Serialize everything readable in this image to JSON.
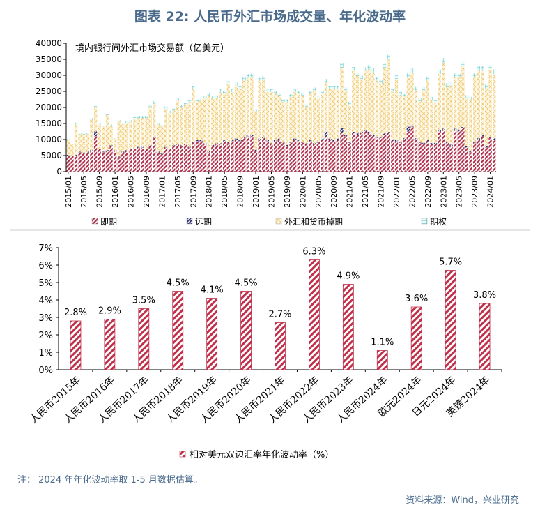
{
  "title": "图表 22: 人民币外汇市场成交量、年化波动率",
  "note": "注： 2024 年年化波动率取 1-5 月数据估算。",
  "source": "资料来源：Wind，兴业研究",
  "colors": {
    "title": "#4a6a8c",
    "spot": "#b0304a",
    "forward": "#2a2a6a",
    "swap": "#e8b84a",
    "option": "#5cc8c8",
    "bar2": "#c0304a"
  },
  "chart_data": [
    {
      "type": "bar",
      "stacked": true,
      "title": "",
      "annotation": "境内银行间外汇市场交易额（亿美元）",
      "ylim": [
        0,
        40000
      ],
      "yticks": [
        "0",
        "5000",
        "10000",
        "15000",
        "20000",
        "25000",
        "30000",
        "35000",
        "40000"
      ],
      "xtick_labels": [
        "2015/01",
        "2015/05",
        "2015/09",
        "2016/01",
        "2016/05",
        "2016/09",
        "2017/01",
        "2017/05",
        "2017/09",
        "2018/01",
        "2018/05",
        "2018/09",
        "2019/01",
        "2019/05",
        "2019/09",
        "2020/01",
        "2020/05",
        "2020/09",
        "2021/01",
        "2021/05",
        "2021/09",
        "2022/01",
        "2022/05",
        "2022/09",
        "2023/01",
        "2023/05",
        "2023/09",
        "2024/01"
      ],
      "legend_position": "bottom",
      "series": [
        {
          "name": "即期",
          "values": [
            5000,
            4800,
            5000,
            6000,
            5500,
            6000,
            6500,
            11000,
            7000,
            6000,
            6500,
            8000,
            6500,
            4500,
            6000,
            6500,
            7000,
            7000,
            7500,
            7500,
            7000,
            8000,
            10500,
            6000,
            5500,
            7500,
            7000,
            8000,
            8500,
            8000,
            8500,
            7500,
            9000,
            9500,
            9500,
            8500,
            6000,
            8000,
            8500,
            8500,
            9500,
            9000,
            9500,
            10000,
            9500,
            10500,
            11000,
            11000,
            6500,
            10000,
            10500,
            9500,
            8500,
            9500,
            10000,
            9000,
            8000,
            9000,
            10000,
            9500,
            9000,
            8500,
            9500,
            8500,
            9000,
            10000,
            11000,
            10000,
            9500,
            10000,
            12000,
            11000,
            9000,
            12000,
            11500,
            12000,
            12500,
            12000,
            11000,
            10500,
            10500,
            11500,
            12000,
            9500,
            9500,
            9000,
            10000,
            12500,
            14000,
            10000,
            9000,
            8500,
            9500,
            8500,
            8500,
            12500,
            13000,
            9000,
            8000,
            13000,
            12500,
            13500,
            7500,
            6000,
            9000,
            10000,
            11000,
            7500,
            10500,
            10000
          ]
        },
        {
          "name": "远期",
          "values": [
            200,
            200,
            200,
            200,
            200,
            200,
            200,
            1500,
            200,
            200,
            200,
            200,
            200,
            200,
            200,
            200,
            200,
            200,
            200,
            200,
            200,
            200,
            200,
            200,
            200,
            200,
            200,
            200,
            200,
            200,
            200,
            200,
            200,
            300,
            300,
            300,
            300,
            300,
            300,
            300,
            300,
            300,
            300,
            300,
            300,
            300,
            300,
            300,
            300,
            300,
            300,
            300,
            300,
            300,
            300,
            300,
            300,
            300,
            300,
            300,
            300,
            300,
            300,
            300,
            300,
            300,
            1500,
            300,
            300,
            300,
            1500,
            400,
            400,
            400,
            400,
            400,
            400,
            400,
            400,
            400,
            400,
            400,
            400,
            400,
            400,
            400,
            400,
            1500,
            400,
            400,
            400,
            400,
            400,
            400,
            400,
            400,
            400,
            400,
            400,
            400,
            400,
            400,
            400,
            400,
            400,
            400,
            400,
            400,
            400,
            400
          ]
        },
        {
          "name": "外汇和货币掉期",
          "values": [
            4800,
            3500,
            9500,
            5500,
            6000,
            5500,
            9500,
            7500,
            7500,
            7800,
            11000,
            6000,
            3500,
            11000,
            8500,
            8500,
            8300,
            9300,
            9000,
            9000,
            9500,
            12000,
            10500,
            8500,
            8500,
            12000,
            11000,
            11000,
            13500,
            12000,
            12000,
            14000,
            16500,
            12000,
            12500,
            14000,
            17500,
            14500,
            14000,
            16000,
            14500,
            18000,
            15000,
            16500,
            16000,
            17500,
            18000,
            18000,
            12000,
            18000,
            18000,
            15000,
            16000,
            14500,
            13500,
            12500,
            13500,
            14000,
            14500,
            14500,
            14500,
            11500,
            14500,
            16500,
            13500,
            14000,
            15500,
            15500,
            16000,
            15500,
            19000,
            14000,
            11500,
            19000,
            18000,
            16500,
            18500,
            19500,
            19500,
            17500,
            16500,
            20500,
            22500,
            15000,
            19000,
            14500,
            13000,
            15500,
            16500,
            15000,
            12500,
            16500,
            18500,
            13500,
            12500,
            17500,
            20500,
            17000,
            18500,
            16000,
            16500,
            19000,
            15000,
            16000,
            20000,
            21000,
            20000,
            18000,
            21000,
            20000
          ]
        },
        {
          "name": "期权",
          "values": [
            200,
            200,
            600,
            200,
            500,
            300,
            500,
            500,
            200,
            200,
            300,
            500,
            200,
            300,
            500,
            500,
            500,
            600,
            600,
            600,
            700,
            700,
            800,
            300,
            400,
            600,
            800,
            600,
            700,
            600,
            600,
            800,
            1000,
            600,
            800,
            700,
            800,
            800,
            700,
            800,
            800,
            900,
            800,
            900,
            900,
            1300,
            1100,
            1200,
            600,
            900,
            900,
            800,
            900,
            800,
            800,
            700,
            700,
            800,
            800,
            800,
            800,
            800,
            800,
            900,
            900,
            900,
            900,
            900,
            900,
            900,
            1200,
            900,
            900,
            1200,
            1100,
            1000,
            1100,
            1300,
            1300,
            1100,
            1100,
            1300,
            1500,
            1000,
            1300,
            1000,
            800,
            1300,
            1500,
            1000,
            900,
            1000,
            1200,
            900,
            900,
            1400,
            1500,
            1100,
            1100,
            1200,
            1100,
            1300,
            900,
            900,
            1400,
            1400,
            1400,
            1200,
            1400,
            1400
          ]
        }
      ]
    },
    {
      "type": "bar",
      "title": "",
      "categories": [
        "人民币2015年",
        "人民币2016年",
        "人民币2017年",
        "人民币2018年",
        "人民币2019年",
        "人民币2020年",
        "人民币2021年",
        "人民币2022年",
        "人民币2023年",
        "人民币2024年",
        "欧元2024年",
        "日元2024年",
        "英镑2024年"
      ],
      "series": [
        {
          "name": "相对美元双边汇率年化波动率（%）",
          "values": [
            2.8,
            2.9,
            3.5,
            4.5,
            4.1,
            4.5,
            2.7,
            6.3,
            4.9,
            1.1,
            3.6,
            5.7,
            3.8
          ]
        }
      ],
      "data_labels": [
        "2.8%",
        "2.9%",
        "3.5%",
        "4.5%",
        "4.1%",
        "4.5%",
        "2.7%",
        "6.3%",
        "4.9%",
        "1.1%",
        "3.6%",
        "5.7%",
        "3.8%"
      ],
      "ylim": [
        0,
        7
      ],
      "yticks": [
        "0%",
        "1%",
        "2%",
        "3%",
        "4%",
        "5%",
        "6%",
        "7%"
      ],
      "legend_position": "bottom"
    }
  ]
}
